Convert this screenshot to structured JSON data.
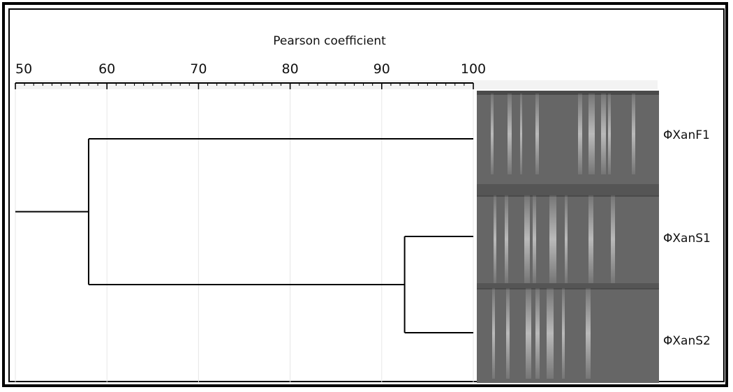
{
  "dendrogram": {
    "axis_title": "Pearson coefficient",
    "axis_min": 50,
    "axis_max": 100,
    "ticks": [
      "50",
      "60",
      "70",
      "80",
      "90",
      "100"
    ],
    "leaves": [
      "ΦXanF1",
      "ΦXanS1",
      "ΦXanS2"
    ],
    "merges": [
      {
        "members": [
          "ΦXanS1",
          "ΦXanS2"
        ],
        "similarity": 92.5
      },
      {
        "members": [
          "ΦXanF1",
          "ΦXanS1",
          "ΦXanS2"
        ],
        "similarity": 58
      }
    ],
    "line_color": "#000000",
    "gel_color": "#6a6a6a"
  }
}
